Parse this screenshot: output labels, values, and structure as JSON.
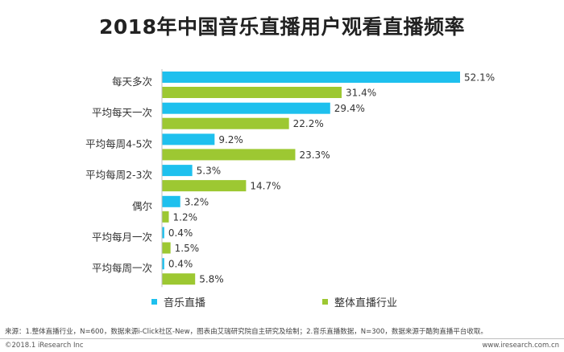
{
  "chart_data": {
    "type": "bar",
    "orientation": "horizontal",
    "title": "2018年中国音乐直播用户观看直播频率",
    "categories": [
      "每天多次",
      "平均每天一次",
      "平均每周4-5次",
      "平均每周2-3次",
      "偶尔",
      "平均每月一次",
      "平均每周一次"
    ],
    "series": [
      {
        "name": "音乐直播",
        "color": "#1ec0ee",
        "values": [
          52.1,
          29.4,
          9.2,
          5.3,
          3.2,
          0.4,
          0.4
        ]
      },
      {
        "name": "整体直播行业",
        "color": "#9dc832",
        "values": [
          31.4,
          22.2,
          23.3,
          14.7,
          1.2,
          1.5,
          5.8
        ]
      }
    ],
    "value_suffix": "%",
    "xlim": [
      0,
      52.1
    ],
    "grid": false,
    "legend_position": "bottom"
  },
  "source_text": "来源：1.整体直播行业，N=600，数据来源i-Click社区-New，图表由艾瑞研究院自主研究及绘制；2.音乐直播数据，N=300，数据来源于酷狗直播平台收取。",
  "footer": {
    "left": "©2018.1 iResearch Inc",
    "right": "www.iresearch.com.cn"
  }
}
